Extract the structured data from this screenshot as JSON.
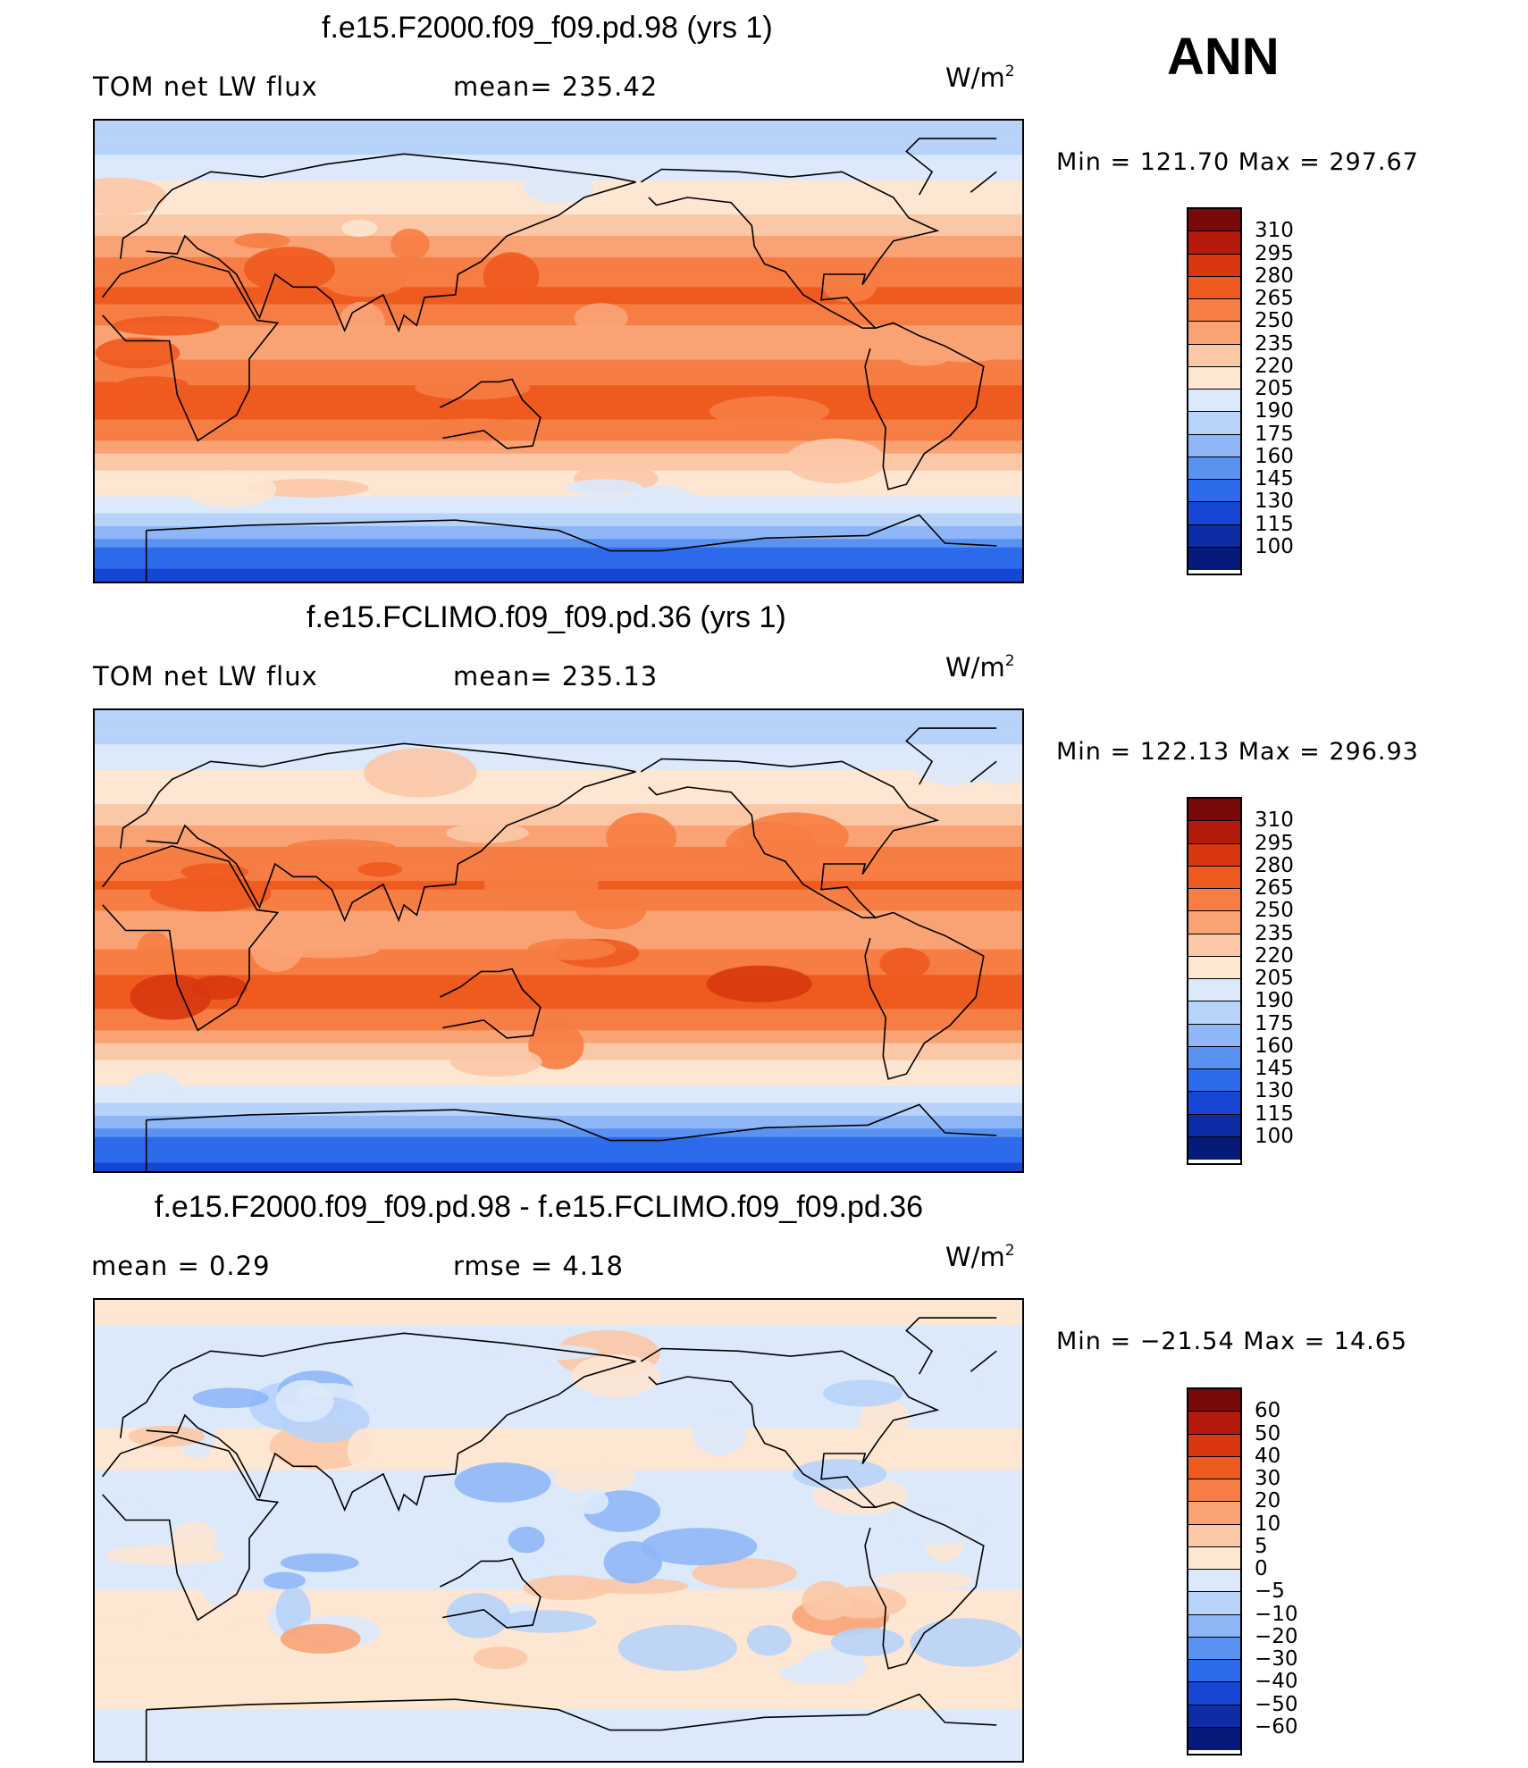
{
  "season": "ANN",
  "unit_base": "W/m",
  "unit_exp": "2",
  "chart_data": [
    {
      "type": "heatmap",
      "title": "f.e15.F2000.f09_f09.pd.98 (yrs 1)",
      "variable": "TOM net LW flux",
      "mean_text": "mean= 235.42",
      "stats_text": "Min  =  121.70  Max  =  297.67",
      "min": 121.7,
      "max": 297.67,
      "mean": 235.42,
      "colorbar_labels": [
        "310",
        "295",
        "280",
        "265",
        "250",
        "235",
        "220",
        "205",
        "190",
        "175",
        "160",
        "145",
        "130",
        "115",
        "100"
      ],
      "colorbar_colors": [
        "#7a0a0a",
        "#b31a0c",
        "#d8370f",
        "#ef5a1f",
        "#f67d43",
        "#f9a375",
        "#fbc8a7",
        "#fde6d2",
        "#dbe9fb",
        "#b7d3fa",
        "#8fb7f7",
        "#5a92f2",
        "#2d6bed",
        "#1746d4",
        "#0d2da6",
        "#061a7a"
      ],
      "zonal_profile": [
        {
          "lat": 90,
          "value": 178
        },
        {
          "lat": 80,
          "value": 185
        },
        {
          "lat": 70,
          "value": 200
        },
        {
          "lat": 60,
          "value": 212
        },
        {
          "lat": 50,
          "value": 225
        },
        {
          "lat": 40,
          "value": 245
        },
        {
          "lat": 30,
          "value": 262
        },
        {
          "lat": 20,
          "value": 268
        },
        {
          "lat": 10,
          "value": 250
        },
        {
          "lat": 0,
          "value": 245
        },
        {
          "lat": -10,
          "value": 262
        },
        {
          "lat": -20,
          "value": 272
        },
        {
          "lat": -30,
          "value": 262
        },
        {
          "lat": -40,
          "value": 235
        },
        {
          "lat": -50,
          "value": 212
        },
        {
          "lat": -60,
          "value": 200
        },
        {
          "lat": -70,
          "value": 170
        },
        {
          "lat": -80,
          "value": 135
        },
        {
          "lat": -90,
          "value": 125
        }
      ]
    },
    {
      "type": "heatmap",
      "title": "f.e15.FCLIMO.f09_f09.pd.36 (yrs 1)",
      "variable": "TOM net LW flux",
      "mean_text": "mean= 235.13",
      "stats_text": "Min  =  122.13  Max  =  296.93",
      "min": 122.13,
      "max": 296.93,
      "mean": 235.13,
      "colorbar_labels": [
        "310",
        "295",
        "280",
        "265",
        "250",
        "235",
        "220",
        "205",
        "190",
        "175",
        "160",
        "145",
        "130",
        "115",
        "100"
      ],
      "colorbar_colors": [
        "#7a0a0a",
        "#b31a0c",
        "#d8370f",
        "#ef5a1f",
        "#f67d43",
        "#f9a375",
        "#fbc8a7",
        "#fde6d2",
        "#dbe9fb",
        "#b7d3fa",
        "#8fb7f7",
        "#5a92f2",
        "#2d6bed",
        "#1746d4",
        "#0d2da6",
        "#061a7a"
      ],
      "zonal_profile": [
        {
          "lat": 90,
          "value": 178
        },
        {
          "lat": 80,
          "value": 186
        },
        {
          "lat": 70,
          "value": 200
        },
        {
          "lat": 60,
          "value": 212
        },
        {
          "lat": 50,
          "value": 225
        },
        {
          "lat": 40,
          "value": 245
        },
        {
          "lat": 30,
          "value": 262
        },
        {
          "lat": 20,
          "value": 266
        },
        {
          "lat": 10,
          "value": 248
        },
        {
          "lat": 0,
          "value": 245
        },
        {
          "lat": -10,
          "value": 262
        },
        {
          "lat": -20,
          "value": 271
        },
        {
          "lat": -30,
          "value": 262
        },
        {
          "lat": -40,
          "value": 235
        },
        {
          "lat": -50,
          "value": 212
        },
        {
          "lat": -60,
          "value": 200
        },
        {
          "lat": -70,
          "value": 170
        },
        {
          "lat": -80,
          "value": 136
        },
        {
          "lat": -90,
          "value": 126
        }
      ]
    },
    {
      "type": "heatmap",
      "title": "f.e15.F2000.f09_f09.pd.98 - f.e15.FCLIMO.f09_f09.pd.36",
      "mean_text": "mean  =      0.29",
      "rmse_text": "rmse  =      4.18",
      "stats_text": "Min  =  −21.54  Max  =     14.65",
      "min": -21.54,
      "max": 14.65,
      "mean": 0.29,
      "rmse": 4.18,
      "colorbar_labels": [
        "60",
        "50",
        "40",
        "30",
        "20",
        "10",
        "5",
        "0",
        "−5",
        "−10",
        "−20",
        "−30",
        "−40",
        "−50",
        "−60"
      ],
      "colorbar_colors": [
        "#7a0a0a",
        "#b31a0c",
        "#d8370f",
        "#ef5a1f",
        "#f67d43",
        "#f9a375",
        "#fbc8a7",
        "#fde6d2",
        "#dbe9fb",
        "#b7d3fa",
        "#8fb7f7",
        "#5a92f2",
        "#2d6bed",
        "#1746d4",
        "#0d2da6",
        "#061a7a"
      ],
      "zonal_profile": [
        {
          "lat": 90,
          "value": 1
        },
        {
          "lat": 60,
          "value": -2
        },
        {
          "lat": 30,
          "value": 1
        },
        {
          "lat": 10,
          "value": -3
        },
        {
          "lat": 0,
          "value": -4
        },
        {
          "lat": -10,
          "value": -3
        },
        {
          "lat": -30,
          "value": 2
        },
        {
          "lat": -60,
          "value": 1
        },
        {
          "lat": -90,
          "value": -2
        }
      ]
    }
  ]
}
